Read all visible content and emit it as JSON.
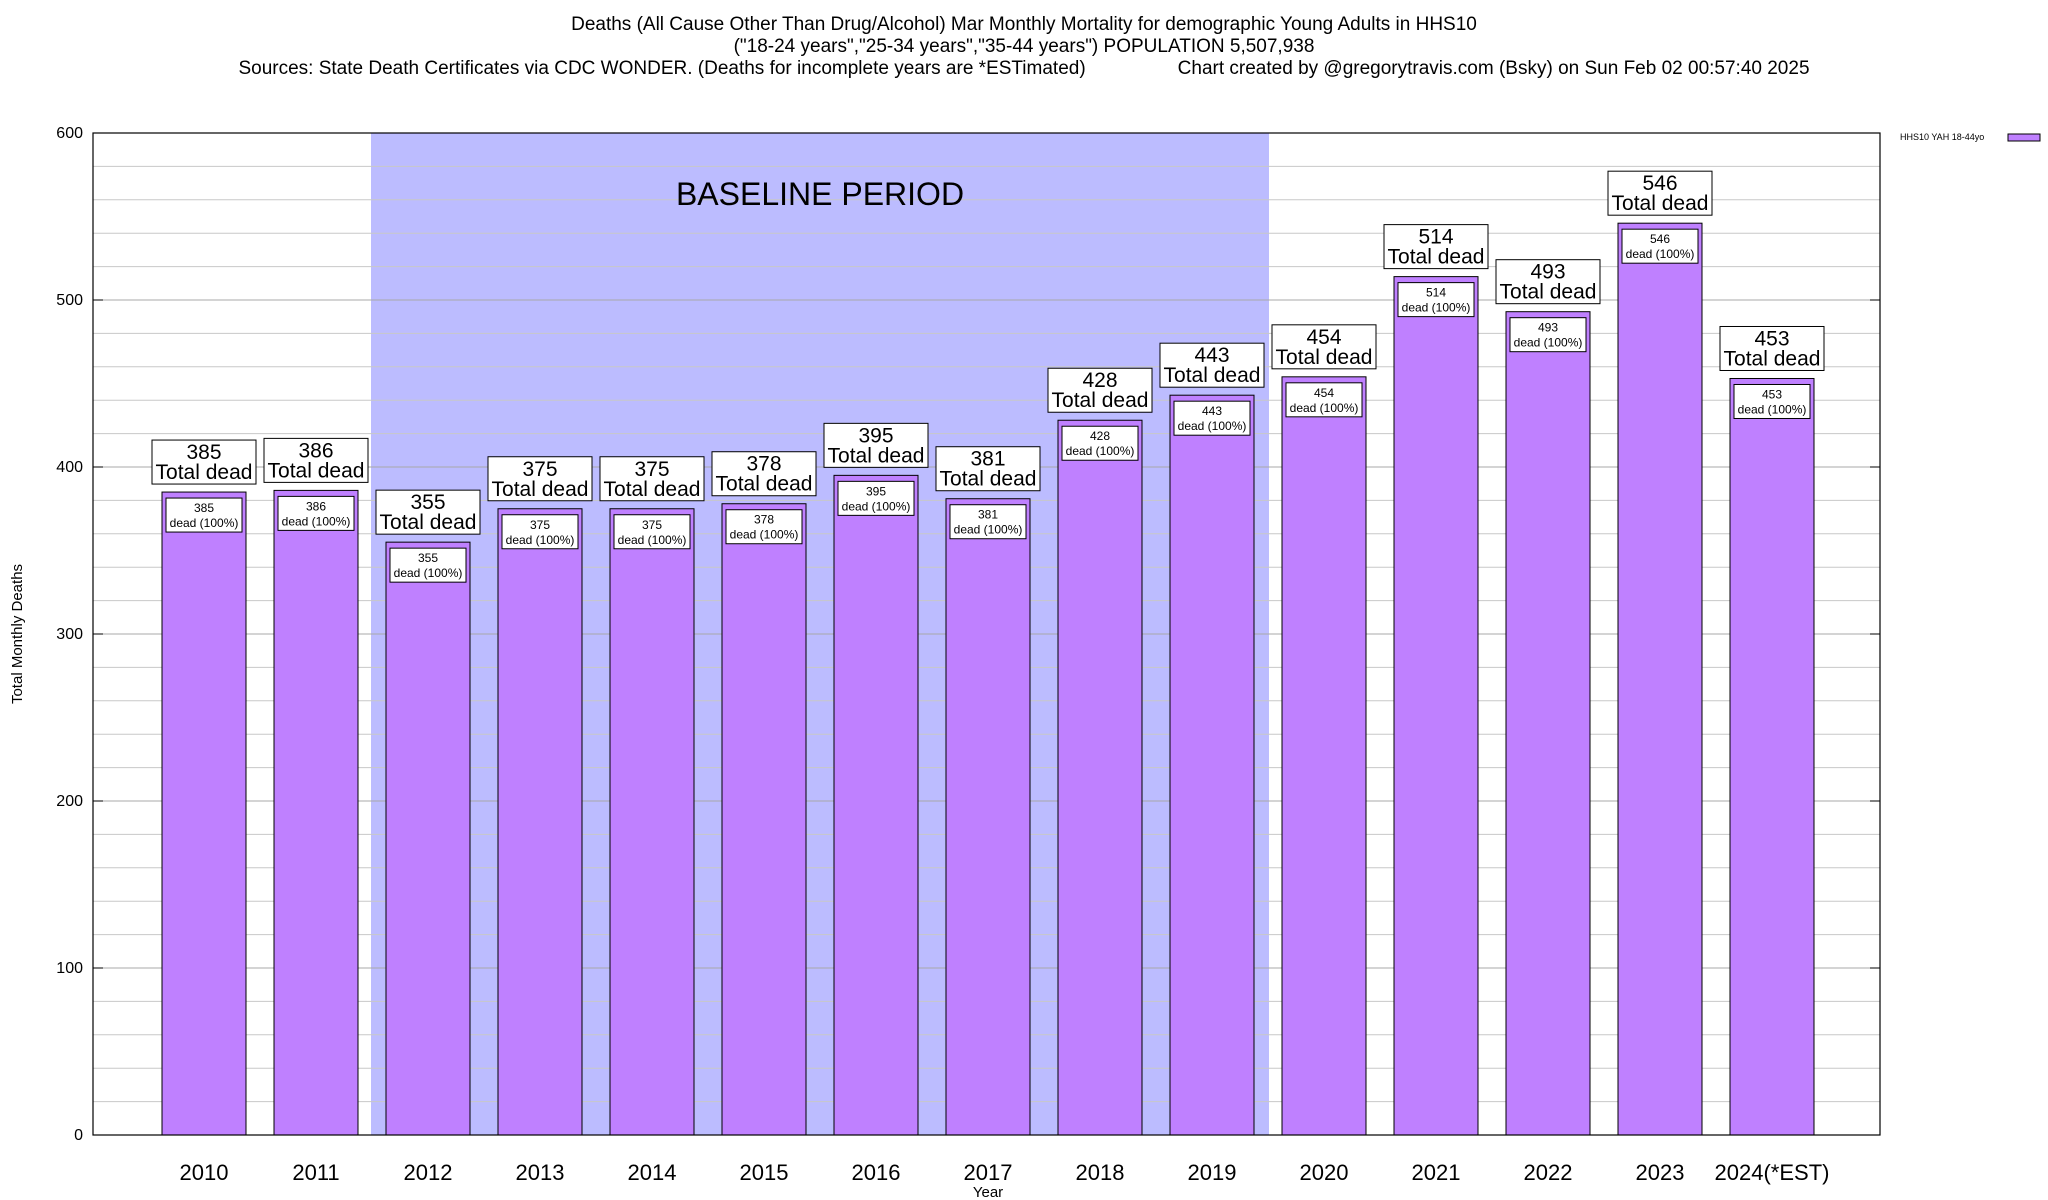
{
  "header": {
    "title": "Deaths (All Cause Other Than Drug/Alcohol) Mar Monthly Mortality for demographic Young Adults in HHS10",
    "subtitle": "(\"18-24 years\",\"25-34 years\",\"35-44 years\") POPULATION 5,507,938",
    "sources": "Sources: State Death Certificates via CDC WONDER. (Deaths for incomplete years are *ESTimated)",
    "credit": "Chart created by @gregorytravis.com (Bsky) on Sun Feb 02 00:57:40 2025"
  },
  "chart_data": {
    "type": "bar",
    "categories": [
      "2010",
      "2011",
      "2012",
      "2013",
      "2014",
      "2015",
      "2016",
      "2017",
      "2018",
      "2019",
      "2020",
      "2021",
      "2022",
      "2023",
      "2024(*EST)"
    ],
    "series": [
      {
        "name": "HHS10 YAH 18-44yo",
        "values": [
          385,
          386,
          355,
          375,
          375,
          378,
          395,
          381,
          428,
          443,
          454,
          514,
          493,
          546,
          453
        ],
        "color": "#bf80ff"
      }
    ],
    "xlabel": "Year",
    "ylabel": "Total Monthly Deaths",
    "ylim": [
      0,
      600
    ],
    "yticks": [
      0,
      100,
      200,
      300,
      400,
      500,
      600
    ],
    "grid": true,
    "legend_position": "top-right",
    "top_label_suffix": "Total dead",
    "inner_label_suffix": "dead (100%)",
    "annotation": {
      "text": "BASELINE PERIOD",
      "start_category": "2012",
      "end_category": "2019",
      "color": "#bcbcff"
    }
  }
}
